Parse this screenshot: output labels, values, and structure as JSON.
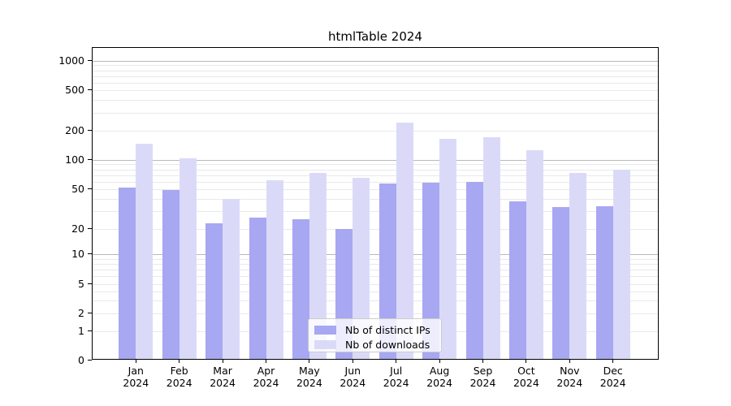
{
  "title": "htmlTable 2024",
  "chart_data": {
    "type": "bar",
    "title": "htmlTable 2024",
    "categories": [
      "Jan",
      "Feb",
      "Mar",
      "Apr",
      "May",
      "Jun",
      "Jul",
      "Aug",
      "Sep",
      "Oct",
      "Nov",
      "Dec"
    ],
    "category_year": "2024",
    "series": [
      {
        "name": "Nb of distinct IPs",
        "color": "#a7a7f2",
        "values": [
          52,
          49,
          23,
          26,
          25,
          20,
          57,
          58,
          60,
          38,
          33,
          34
        ]
      },
      {
        "name": "Nb of downloads",
        "color": "#dadaf8",
        "values": [
          147,
          103,
          40,
          62,
          73,
          65,
          240,
          164,
          170,
          125,
          74,
          79
        ]
      }
    ],
    "xlabel": "",
    "ylabel": "",
    "y_scale": "symlog",
    "y_ticks": [
      0,
      1,
      2,
      5,
      10,
      20,
      50,
      100,
      200,
      500,
      1000
    ],
    "ylim": [
      0,
      1400
    ],
    "grid": true,
    "legend_position": "lower-center"
  },
  "colors": {
    "major_grid": "#b9b9b9",
    "minor_grid": "#e9e9ec",
    "axis": "#000000",
    "background": "#ffffff"
  }
}
